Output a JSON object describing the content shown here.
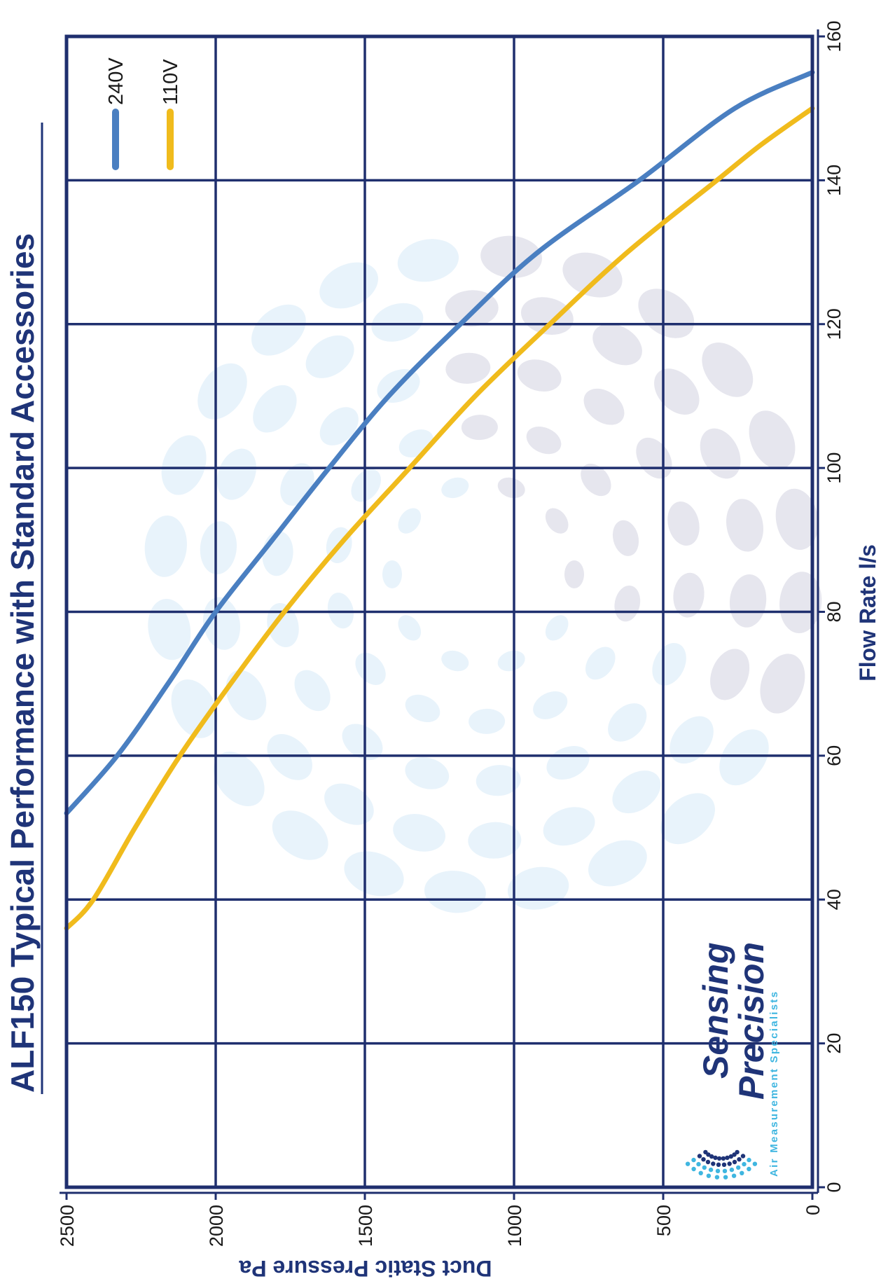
{
  "chart_data": {
    "type": "line",
    "title": "ALF150 Typical Performance with Standard Accessories",
    "xlabel": "Flow Rate l/s",
    "ylabel": "Duct Static Pressure Pa",
    "xlim": [
      0,
      160
    ],
    "ylim": [
      0,
      2500
    ],
    "x_ticks": [
      "0",
      "20",
      "40",
      "60",
      "80",
      "100",
      "120",
      "140",
      "160"
    ],
    "y_ticks": [
      "0",
      "500",
      "1000",
      "1500",
      "2000",
      "2500"
    ],
    "grid": true,
    "legend_position": "top-right",
    "series": [
      {
        "name": "240V",
        "color": "#4a7fc1",
        "x": [
          52,
          60,
          70,
          80,
          90,
          100,
          110,
          120,
          130,
          140,
          150,
          155
        ],
        "y": [
          2500,
          2330,
          2160,
          2000,
          1810,
          1620,
          1420,
          1180,
          920,
          580,
          260,
          0
        ]
      },
      {
        "name": "110V",
        "color": "#f0bb1c",
        "x": [
          36,
          40,
          50,
          60,
          70,
          80,
          90,
          100,
          110,
          120,
          130,
          140,
          145,
          150
        ],
        "y": [
          2500,
          2410,
          2270,
          2120,
          1950,
          1770,
          1570,
          1350,
          1130,
          880,
          620,
          320,
          170,
          0
        ]
      }
    ]
  },
  "logo": {
    "line1": "Sensing",
    "line2": "Precision",
    "tagline": "Air Measurement Specialists",
    "icon": "airflow-swirl-icon"
  },
  "watermark": {
    "icon": "dotted-spiral-watermark",
    "colors": [
      "#e8f3fb",
      "#e6e6ee"
    ]
  }
}
